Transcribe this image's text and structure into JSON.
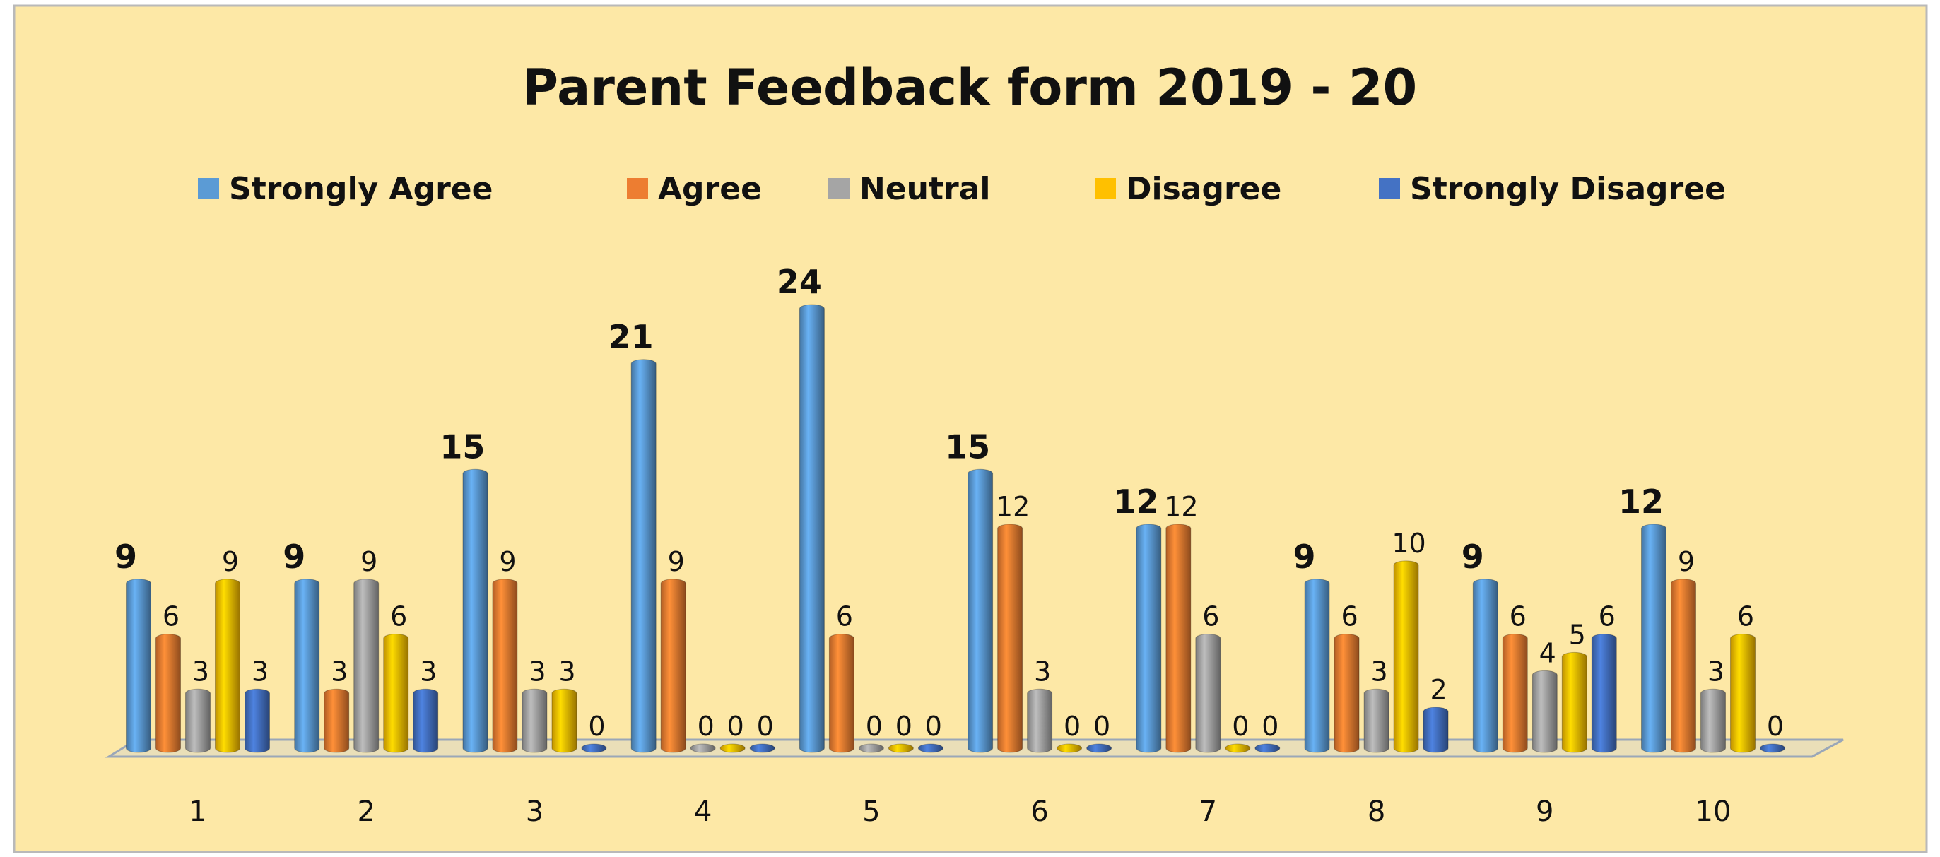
{
  "chart_data": {
    "type": "bar",
    "title": "Parent Feedback form 2019 - 20",
    "categories": [
      "1",
      "2",
      "3",
      "4",
      "5",
      "6",
      "7",
      "8",
      "9",
      "10"
    ],
    "series": [
      {
        "name": "Strongly Agree",
        "color": "#5b9bd5",
        "values": [
          9,
          9,
          15,
          21,
          24,
          15,
          12,
          9,
          9,
          12
        ]
      },
      {
        "name": "Agree",
        "color": "#ed7d31",
        "values": [
          6,
          3,
          9,
          9,
          6,
          12,
          12,
          6,
          6,
          9
        ]
      },
      {
        "name": "Neutral",
        "color": "#a5a5a5",
        "values": [
          3,
          9,
          3,
          0,
          0,
          3,
          6,
          3,
          4,
          3
        ]
      },
      {
        "name": "Disagree",
        "color": "#ffc000",
        "values": [
          9,
          6,
          3,
          0,
          0,
          0,
          0,
          10,
          5,
          6
        ]
      },
      {
        "name": "Strongly Disagree",
        "color": "#4472c4",
        "values": [
          3,
          3,
          0,
          0,
          0,
          0,
          0,
          2,
          6,
          0
        ]
      }
    ],
    "ylim": [
      0,
      24
    ],
    "legend": "top"
  }
}
